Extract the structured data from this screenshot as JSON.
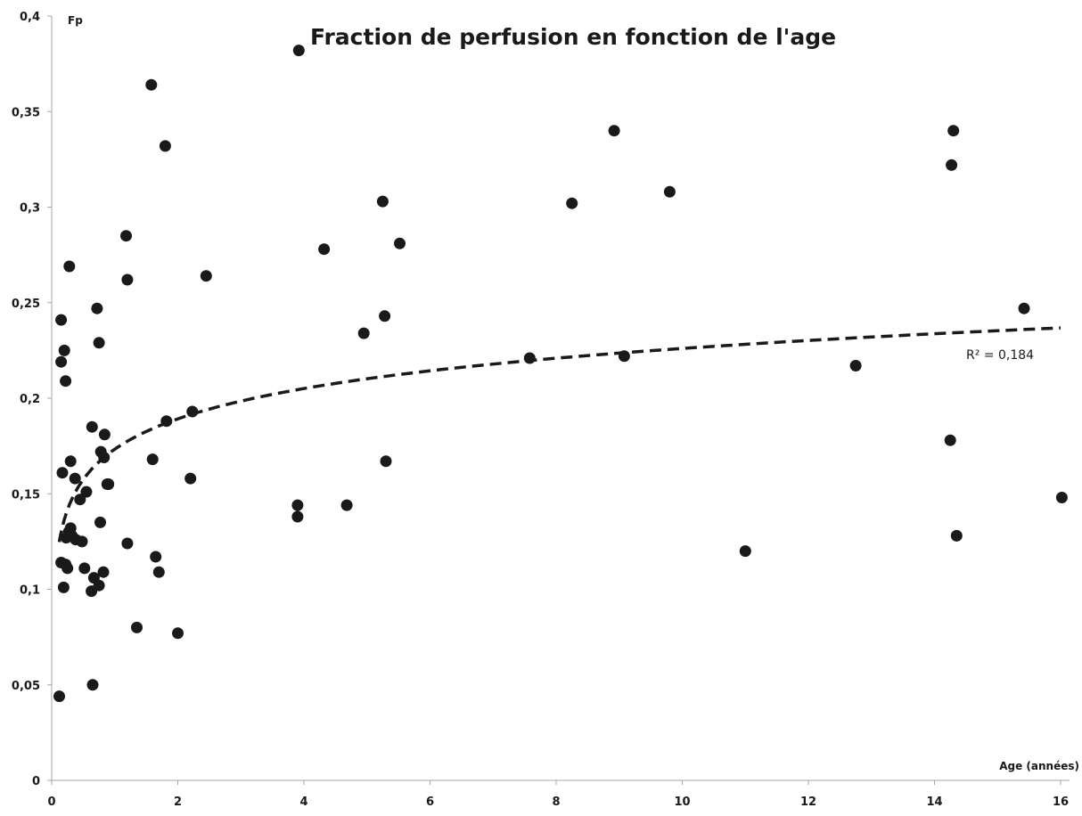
{
  "chart_data": {
    "type": "scatter",
    "title": "Fraction de perfusion en fonction de l'age",
    "xlabel": "Age (années)",
    "ylabel": "Fp",
    "xlim": [
      0,
      16
    ],
    "ylim": [
      0,
      0.4
    ],
    "x_ticks": [
      "0",
      "2",
      "4",
      "6",
      "8",
      "10",
      "12",
      "14",
      "16"
    ],
    "y_ticks": [
      "0",
      "0,05",
      "0,1",
      "0,15",
      "0,2",
      "0,25",
      "0,3",
      "0,35",
      "0,4"
    ],
    "grid": false,
    "legend": "none",
    "marker_color": "#1a1a1a",
    "trendline": {
      "type": "logarithmic",
      "style": "dashed",
      "label": "R² = 0,184",
      "x_range": [
        0.12,
        16
      ],
      "equation": {
        "a": 0.0229,
        "b": 0.1733
      }
    },
    "series": [
      {
        "x": [
          0.12,
          0.15,
          0.15,
          0.15,
          0.17,
          0.19,
          0.2,
          0.22,
          0.22,
          0.23,
          0.25,
          0.27,
          0.28,
          0.3,
          0.3,
          0.32,
          0.37,
          0.38,
          0.45,
          0.48,
          0.52,
          0.55,
          0.63,
          0.64,
          0.65,
          0.67,
          0.72,
          0.75,
          0.75,
          0.77,
          0.78,
          0.82,
          0.83,
          0.84,
          0.88,
          0.9,
          1.18,
          1.2,
          1.2,
          1.35,
          1.58,
          1.6,
          1.65,
          1.7,
          1.8,
          1.82,
          2.0,
          2.2,
          2.23,
          2.45,
          3.9,
          3.9,
          3.92,
          4.32,
          4.68,
          4.95,
          5.25,
          5.28,
          5.3,
          5.52,
          7.58,
          8.25,
          8.92,
          9.08,
          9.8,
          11.0,
          12.75,
          14.25,
          14.27,
          14.3,
          14.35,
          15.42,
          16.02
        ],
        "y": [
          0.044,
          0.114,
          0.219,
          0.241,
          0.161,
          0.101,
          0.225,
          0.113,
          0.209,
          0.127,
          0.111,
          0.13,
          0.269,
          0.132,
          0.167,
          0.128,
          0.158,
          0.126,
          0.147,
          0.125,
          0.111,
          0.151,
          0.099,
          0.185,
          0.05,
          0.106,
          0.247,
          0.102,
          0.229,
          0.135,
          0.172,
          0.109,
          0.169,
          0.181,
          0.155,
          0.155,
          0.285,
          0.262,
          0.124,
          0.08,
          0.364,
          0.168,
          0.117,
          0.109,
          0.332,
          0.188,
          0.077,
          0.158,
          0.193,
          0.264,
          0.144,
          0.138,
          0.382,
          0.278,
          0.144,
          0.234,
          0.303,
          0.243,
          0.167,
          0.281,
          0.221,
          0.302,
          0.34,
          0.222,
          0.308,
          0.12,
          0.217,
          0.178,
          0.322,
          0.34,
          0.128,
          0.247,
          0.148
        ]
      }
    ]
  }
}
